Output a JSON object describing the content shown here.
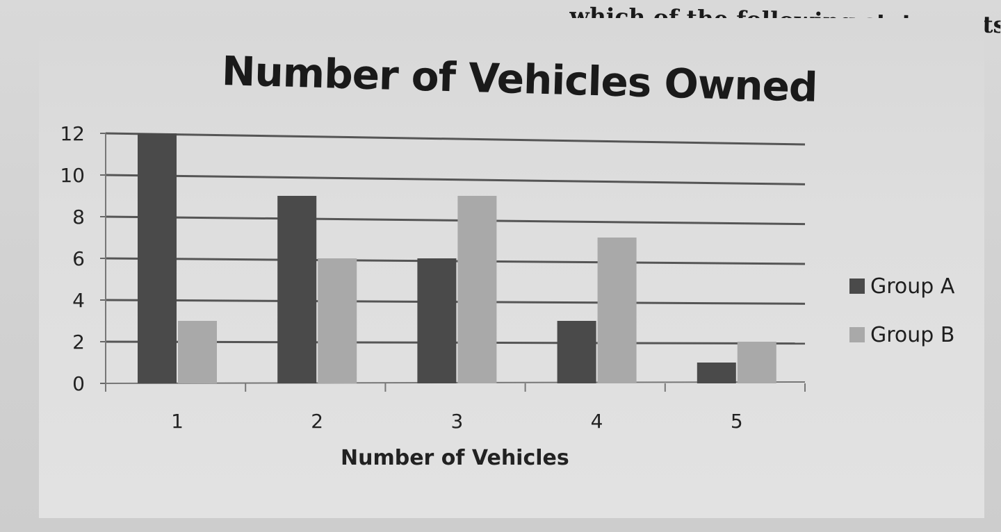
{
  "top_text": "which of the following statements is tr",
  "chart_data": {
    "type": "bar",
    "title": "Number of Vehicles Owned",
    "xlabel": "Number of Vehicles",
    "ylabel": "",
    "categories": [
      "1",
      "2",
      "3",
      "4",
      "5"
    ],
    "series": [
      {
        "name": "Group A",
        "values": [
          12,
          9,
          6,
          3,
          1
        ],
        "color": "#4a4a4a"
      },
      {
        "name": "Group B",
        "values": [
          3,
          6,
          9,
          7,
          2
        ],
        "color": "#a9a9a9"
      }
    ],
    "ylim": [
      0,
      12
    ],
    "yticks": [
      0,
      2,
      4,
      6,
      8,
      10,
      12
    ],
    "grid": true,
    "legend": "right"
  }
}
